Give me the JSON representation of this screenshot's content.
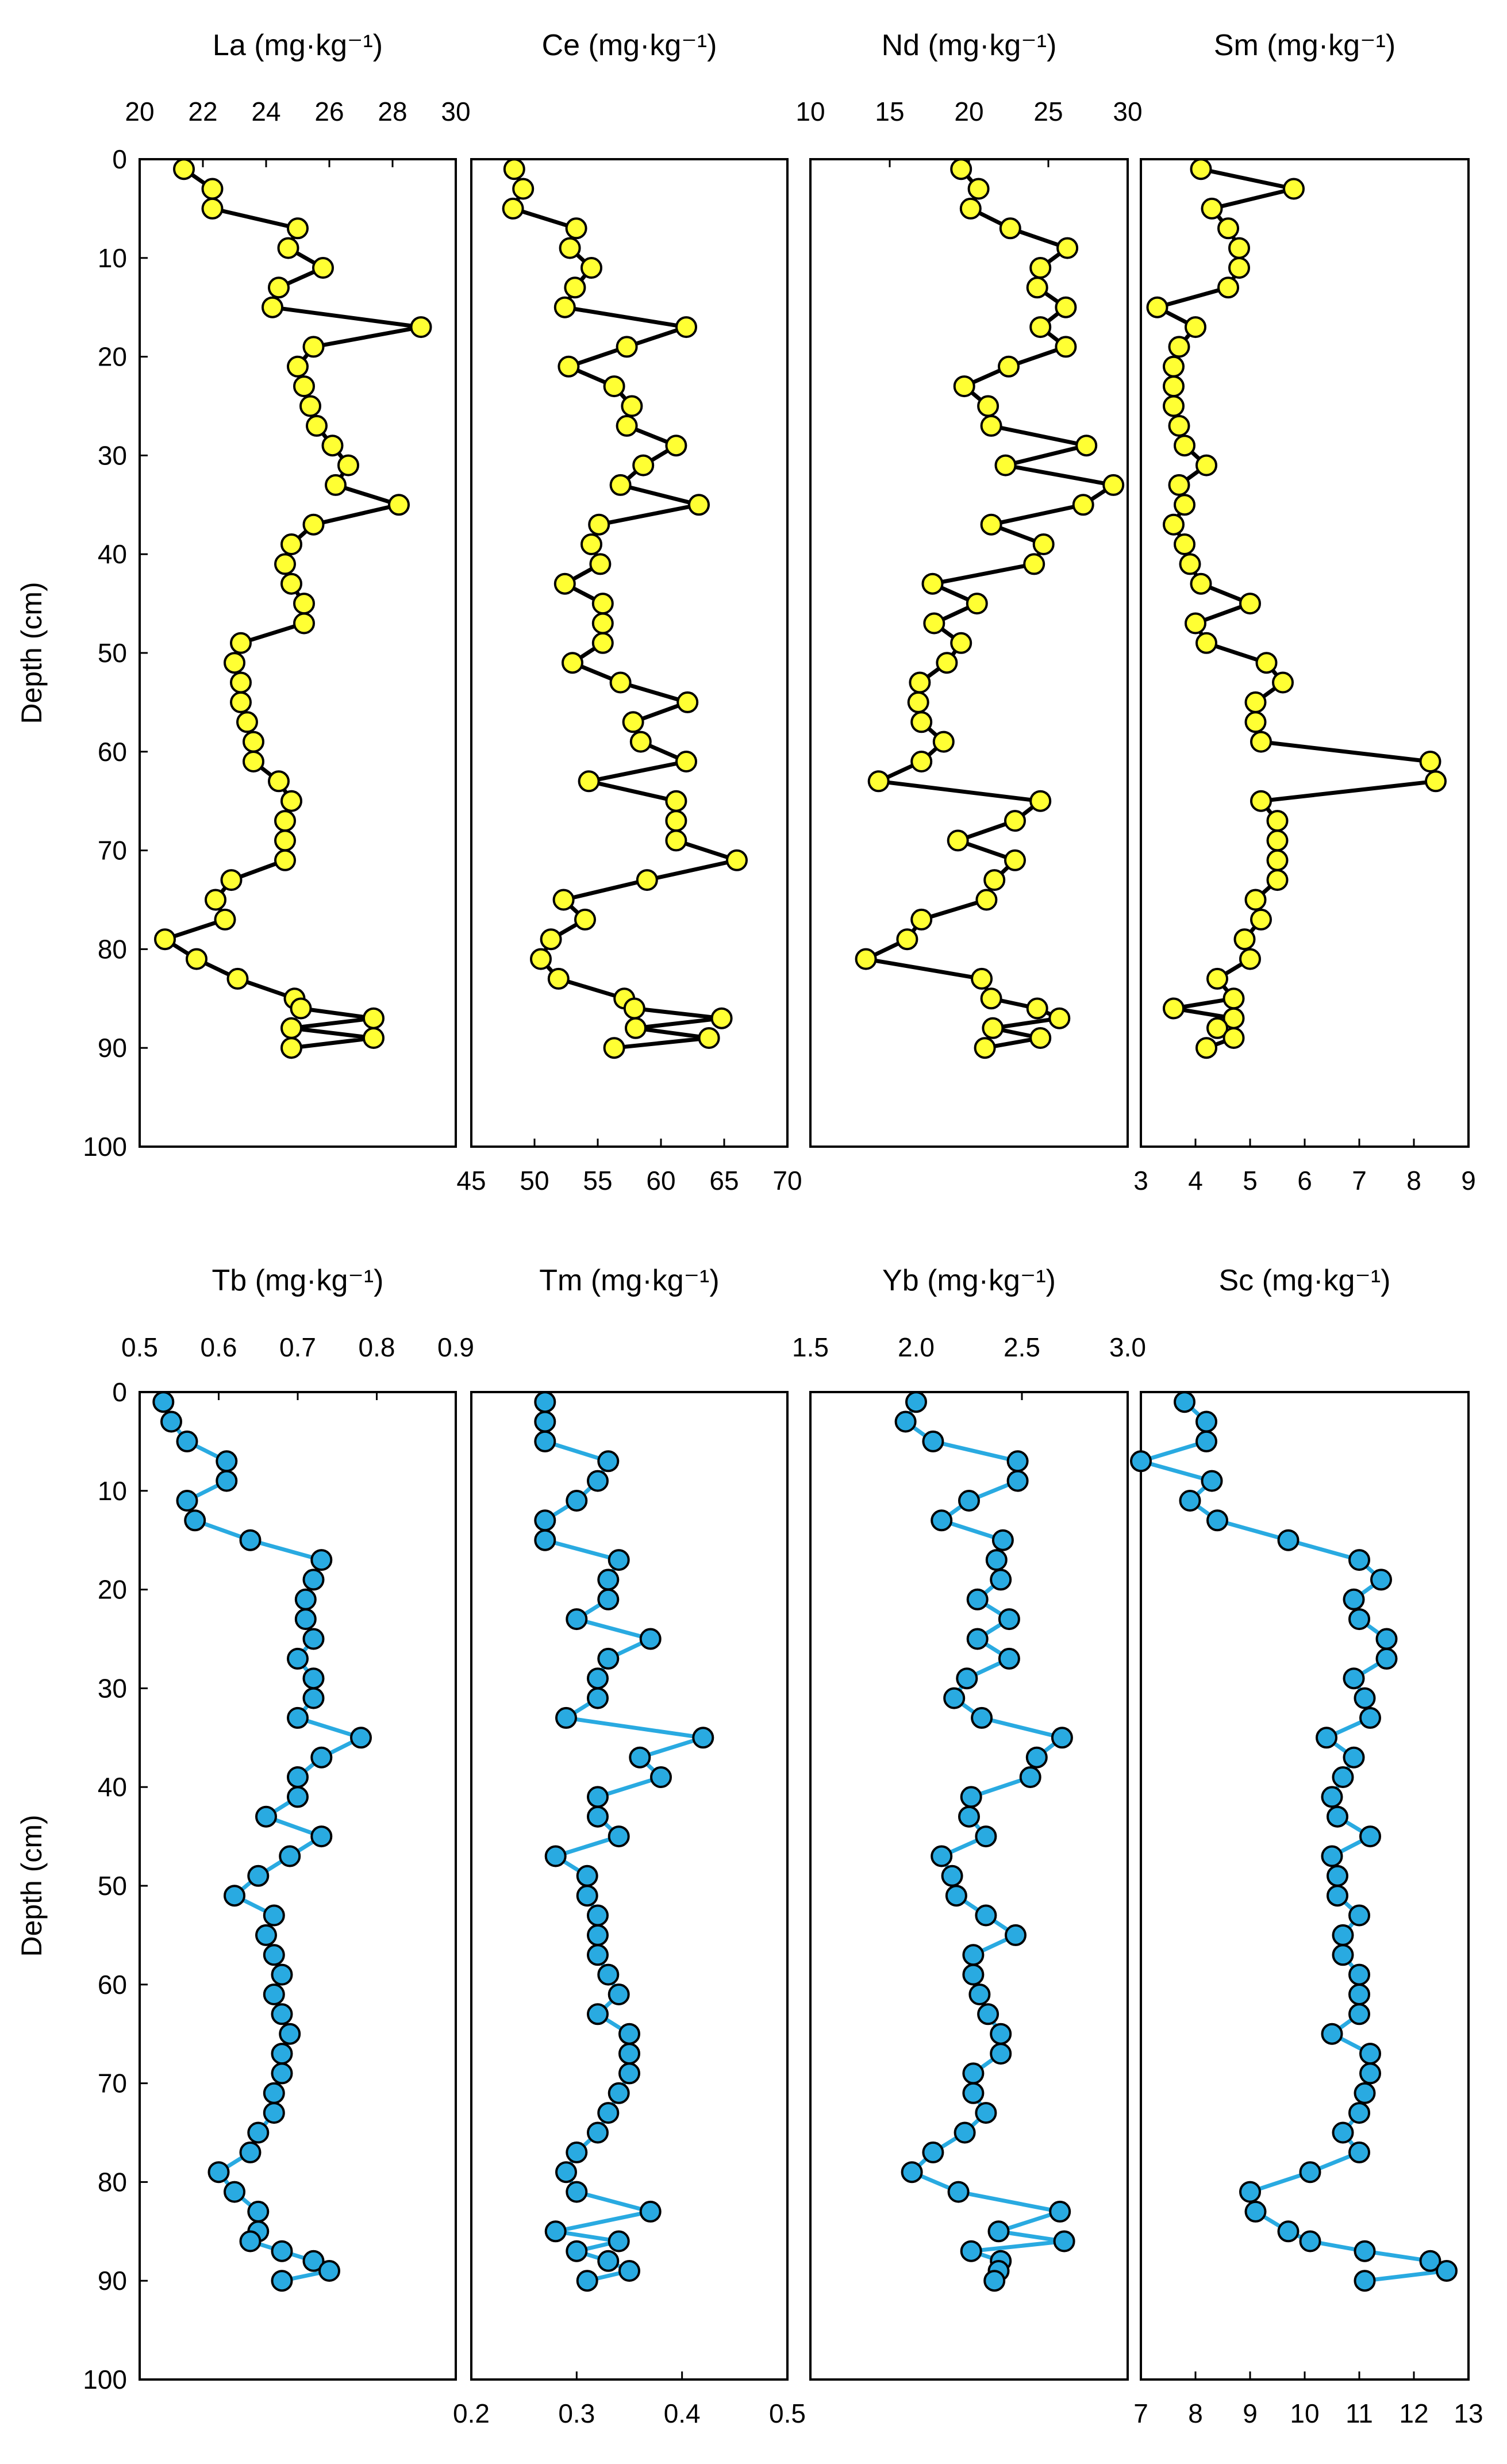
{
  "figure": {
    "y_axis_label": "Depth (cm)",
    "depth_ticks": [
      "0",
      "10",
      "20",
      "30",
      "40",
      "50",
      "60",
      "70",
      "80",
      "90",
      "100"
    ],
    "colors": {
      "top_marker": "#ffff33",
      "bottom_marker": "#29aae1",
      "top_line": "#000000",
      "bottom_line": "#29aae1",
      "frame": "#000000"
    }
  },
  "chart_data": [
    {
      "type": "line",
      "element": "La",
      "title": "La (mg·kg⁻¹)",
      "xlim": [
        20,
        30
      ],
      "xticks": [
        "20",
        "22",
        "24",
        "26",
        "28",
        "30"
      ],
      "ticks_at": "top",
      "ylim": [
        0,
        100
      ],
      "ylabel": "Depth (cm)",
      "depth": [
        1,
        3,
        5,
        7,
        9,
        11,
        13,
        15,
        17,
        19,
        21,
        23,
        25,
        27,
        29,
        31,
        33,
        35,
        37,
        39,
        41,
        43,
        45,
        47,
        49,
        51,
        53,
        55,
        57,
        59,
        61,
        63,
        65,
        67,
        69,
        71,
        73,
        75,
        77,
        79,
        81,
        83,
        85,
        86,
        87,
        88,
        89,
        90
      ],
      "values": [
        21.4,
        22.3,
        22.3,
        25.0,
        24.7,
        25.8,
        24.4,
        24.2,
        28.9,
        25.5,
        25.0,
        25.2,
        25.4,
        25.6,
        26.1,
        26.6,
        26.2,
        28.2,
        25.5,
        24.8,
        24.6,
        24.8,
        25.2,
        25.2,
        23.2,
        23.0,
        23.2,
        23.2,
        23.4,
        23.6,
        23.6,
        24.4,
        24.8,
        24.6,
        24.6,
        24.6,
        22.9,
        22.4,
        22.7,
        20.8,
        21.8,
        23.1,
        24.9,
        25.1,
        27.4,
        24.8,
        27.4,
        24.8
      ]
    },
    {
      "type": "line",
      "element": "Ce",
      "title": "Ce (mg·kg⁻¹)",
      "xlim": [
        45,
        70
      ],
      "xticks": [
        "45",
        "50",
        "55",
        "60",
        "65",
        "70"
      ],
      "ticks_at": "bottom",
      "ylim": [
        0,
        100
      ],
      "depth": [
        1,
        3,
        5,
        7,
        9,
        11,
        13,
        15,
        17,
        19,
        21,
        23,
        25,
        27,
        29,
        31,
        33,
        35,
        37,
        39,
        41,
        43,
        45,
        47,
        49,
        51,
        53,
        55,
        57,
        59,
        61,
        63,
        65,
        67,
        69,
        71,
        73,
        75,
        77,
        79,
        81,
        83,
        85,
        86,
        87,
        88,
        89,
        90
      ],
      "values": [
        48.4,
        49.1,
        48.3,
        53.3,
        52.8,
        54.5,
        53.2,
        52.4,
        62.0,
        57.3,
        52.7,
        56.3,
        57.7,
        57.3,
        61.2,
        58.6,
        56.8,
        63.0,
        55.1,
        54.5,
        55.2,
        52.4,
        55.4,
        55.4,
        55.4,
        53.0,
        56.8,
        62.1,
        57.8,
        58.4,
        62.0,
        54.3,
        61.2,
        61.2,
        61.2,
        66.0,
        58.9,
        52.3,
        54.0,
        51.3,
        50.5,
        51.9,
        57.1,
        57.9,
        64.8,
        58.0,
        63.8,
        56.3
      ]
    },
    {
      "type": "line",
      "element": "Nd",
      "title": "Nd (mg·kg⁻¹)",
      "xlim": [
        10,
        30
      ],
      "xticks": [
        "10",
        "15",
        "20",
        "25",
        "30"
      ],
      "ticks_at": "top",
      "ylim": [
        0,
        100
      ],
      "depth": [
        1,
        3,
        5,
        7,
        9,
        11,
        13,
        15,
        17,
        19,
        21,
        23,
        25,
        27,
        29,
        31,
        33,
        35,
        37,
        39,
        41,
        43,
        45,
        47,
        49,
        51,
        53,
        55,
        57,
        59,
        61,
        63,
        65,
        67,
        69,
        71,
        73,
        75,
        77,
        79,
        81,
        83,
        85,
        86,
        87,
        88,
        89,
        90
      ],
      "values": [
        19.5,
        20.6,
        20.1,
        22.6,
        26.2,
        24.5,
        24.3,
        26.1,
        24.5,
        26.1,
        22.5,
        19.7,
        21.2,
        21.4,
        27.4,
        22.3,
        29.1,
        27.2,
        21.4,
        24.7,
        24.1,
        17.7,
        20.5,
        17.8,
        19.5,
        18.6,
        16.9,
        16.8,
        17.0,
        18.4,
        17.0,
        14.3,
        24.5,
        22.9,
        19.3,
        22.9,
        21.6,
        21.1,
        17.0,
        16.1,
        13.5,
        20.8,
        21.4,
        24.3,
        25.7,
        21.5,
        24.5,
        21.0
      ]
    },
    {
      "type": "line",
      "element": "Sm",
      "title": "Sm (mg·kg⁻¹)",
      "xlim": [
        3,
        9
      ],
      "xticks": [
        "3",
        "4",
        "5",
        "6",
        "7",
        "8",
        "9"
      ],
      "ticks_at": "bottom",
      "ylim": [
        0,
        100
      ],
      "depth": [
        1,
        3,
        5,
        7,
        9,
        11,
        13,
        15,
        17,
        19,
        21,
        23,
        25,
        27,
        29,
        31,
        33,
        35,
        37,
        39,
        41,
        43,
        45,
        47,
        49,
        51,
        53,
        55,
        57,
        59,
        61,
        63,
        65,
        67,
        69,
        71,
        73,
        75,
        77,
        79,
        81,
        83,
        85,
        86,
        87,
        88,
        89,
        90
      ],
      "values": [
        4.1,
        5.8,
        4.3,
        4.6,
        4.8,
        4.8,
        4.6,
        3.3,
        4.0,
        3.7,
        3.6,
        3.6,
        3.6,
        3.7,
        3.8,
        4.2,
        3.7,
        3.8,
        3.6,
        3.8,
        3.9,
        4.1,
        5.0,
        4.0,
        4.2,
        5.3,
        5.6,
        5.1,
        5.1,
        5.2,
        8.3,
        8.4,
        5.2,
        5.5,
        5.5,
        5.5,
        5.5,
        5.1,
        5.2,
        4.9,
        5.0,
        4.4,
        4.7,
        3.6,
        4.7,
        4.4,
        4.7,
        4.2
      ]
    },
    {
      "type": "line",
      "element": "Tb",
      "title": "Tb (mg·kg⁻¹)",
      "xlim": [
        0.5,
        0.9
      ],
      "xticks": [
        "0.5",
        "0.6",
        "0.7",
        "0.8",
        "0.9"
      ],
      "ticks_at": "top",
      "ylim": [
        0,
        100
      ],
      "ylabel": "Depth (cm)",
      "depth": [
        1,
        3,
        5,
        7,
        9,
        11,
        13,
        15,
        17,
        19,
        21,
        23,
        25,
        27,
        29,
        31,
        33,
        35,
        37,
        39,
        41,
        43,
        45,
        47,
        49,
        51,
        53,
        55,
        57,
        59,
        61,
        63,
        65,
        67,
        69,
        71,
        73,
        75,
        77,
        79,
        81,
        83,
        85,
        86,
        87,
        88,
        89,
        90
      ],
      "values": [
        0.53,
        0.54,
        0.56,
        0.61,
        0.61,
        0.56,
        0.57,
        0.64,
        0.73,
        0.72,
        0.71,
        0.71,
        0.72,
        0.7,
        0.72,
        0.72,
        0.7,
        0.78,
        0.73,
        0.7,
        0.7,
        0.66,
        0.73,
        0.69,
        0.65,
        0.62,
        0.67,
        0.66,
        0.67,
        0.68,
        0.67,
        0.68,
        0.69,
        0.68,
        0.68,
        0.67,
        0.67,
        0.65,
        0.64,
        0.6,
        0.62,
        0.65,
        0.65,
        0.64,
        0.68,
        0.72,
        0.74,
        0.68
      ]
    },
    {
      "type": "line",
      "element": "Tm",
      "title": "Tm (mg·kg⁻¹)",
      "xlim": [
        0.2,
        0.5
      ],
      "xticks": [
        "0.2",
        "0.3",
        "0.4",
        "0.5"
      ],
      "ticks_at": "bottom",
      "ylim": [
        0,
        100
      ],
      "depth": [
        1,
        3,
        5,
        7,
        9,
        11,
        13,
        15,
        17,
        19,
        21,
        23,
        25,
        27,
        29,
        31,
        33,
        35,
        37,
        39,
        41,
        43,
        45,
        47,
        49,
        51,
        53,
        55,
        57,
        59,
        61,
        63,
        65,
        67,
        69,
        71,
        73,
        75,
        77,
        79,
        81,
        83,
        85,
        86,
        87,
        88,
        89,
        90
      ],
      "values": [
        0.27,
        0.27,
        0.27,
        0.33,
        0.32,
        0.3,
        0.27,
        0.27,
        0.34,
        0.33,
        0.33,
        0.3,
        0.37,
        0.33,
        0.32,
        0.32,
        0.29,
        0.42,
        0.36,
        0.38,
        0.32,
        0.32,
        0.34,
        0.28,
        0.31,
        0.31,
        0.32,
        0.32,
        0.32,
        0.33,
        0.34,
        0.32,
        0.35,
        0.35,
        0.35,
        0.34,
        0.33,
        0.32,
        0.3,
        0.29,
        0.3,
        0.37,
        0.28,
        0.34,
        0.3,
        0.33,
        0.35,
        0.31
      ]
    },
    {
      "type": "line",
      "element": "Yb",
      "title": "Yb (mg·kg⁻¹)",
      "xlim": [
        1.5,
        3.0
      ],
      "xticks": [
        "1.5",
        "2.0",
        "2.5",
        "3.0"
      ],
      "ticks_at": "top",
      "ylim": [
        0,
        100
      ],
      "depth": [
        1,
        3,
        5,
        7,
        9,
        11,
        13,
        15,
        17,
        19,
        21,
        23,
        25,
        27,
        29,
        31,
        33,
        35,
        37,
        39,
        41,
        43,
        45,
        47,
        49,
        51,
        53,
        55,
        57,
        59,
        61,
        63,
        65,
        67,
        69,
        71,
        73,
        75,
        77,
        79,
        81,
        83,
        85,
        86,
        87,
        88,
        89,
        90
      ],
      "values": [
        2.0,
        1.95,
        2.08,
        2.48,
        2.48,
        2.25,
        2.12,
        2.41,
        2.38,
        2.4,
        2.29,
        2.44,
        2.29,
        2.44,
        2.24,
        2.18,
        2.31,
        2.69,
        2.57,
        2.54,
        2.26,
        2.25,
        2.33,
        2.12,
        2.17,
        2.19,
        2.33,
        2.47,
        2.27,
        2.27,
        2.3,
        2.34,
        2.4,
        2.4,
        2.27,
        2.27,
        2.33,
        2.23,
        2.08,
        1.98,
        2.2,
        2.68,
        2.39,
        2.7,
        2.26,
        2.4,
        2.39,
        2.37
      ]
    },
    {
      "type": "line",
      "element": "Sc",
      "title": "Sc (mg·kg⁻¹)",
      "xlim": [
        7,
        13
      ],
      "xticks": [
        "7",
        "8",
        "9",
        "10",
        "11",
        "12",
        "13"
      ],
      "ticks_at": "bottom",
      "ylim": [
        0,
        100
      ],
      "depth": [
        1,
        3,
        5,
        7,
        9,
        11,
        13,
        15,
        17,
        19,
        21,
        23,
        25,
        27,
        29,
        31,
        33,
        35,
        37,
        39,
        41,
        43,
        45,
        47,
        49,
        51,
        53,
        55,
        57,
        59,
        61,
        63,
        65,
        67,
        69,
        71,
        73,
        75,
        77,
        79,
        81,
        83,
        85,
        86,
        87,
        88,
        89,
        90
      ],
      "values": [
        7.8,
        8.2,
        8.2,
        7.0,
        8.3,
        7.9,
        8.4,
        9.7,
        11.0,
        11.4,
        10.9,
        11.0,
        11.5,
        11.5,
        10.9,
        11.1,
        11.2,
        10.4,
        10.9,
        10.7,
        10.5,
        10.6,
        11.2,
        10.5,
        10.6,
        10.6,
        11.0,
        10.7,
        10.7,
        11.0,
        11.0,
        11.0,
        10.5,
        11.2,
        11.2,
        11.1,
        11.0,
        10.7,
        11.0,
        10.1,
        9.0,
        9.1,
        9.7,
        10.1,
        11.1,
        12.3,
        12.6,
        11.1
      ]
    }
  ]
}
